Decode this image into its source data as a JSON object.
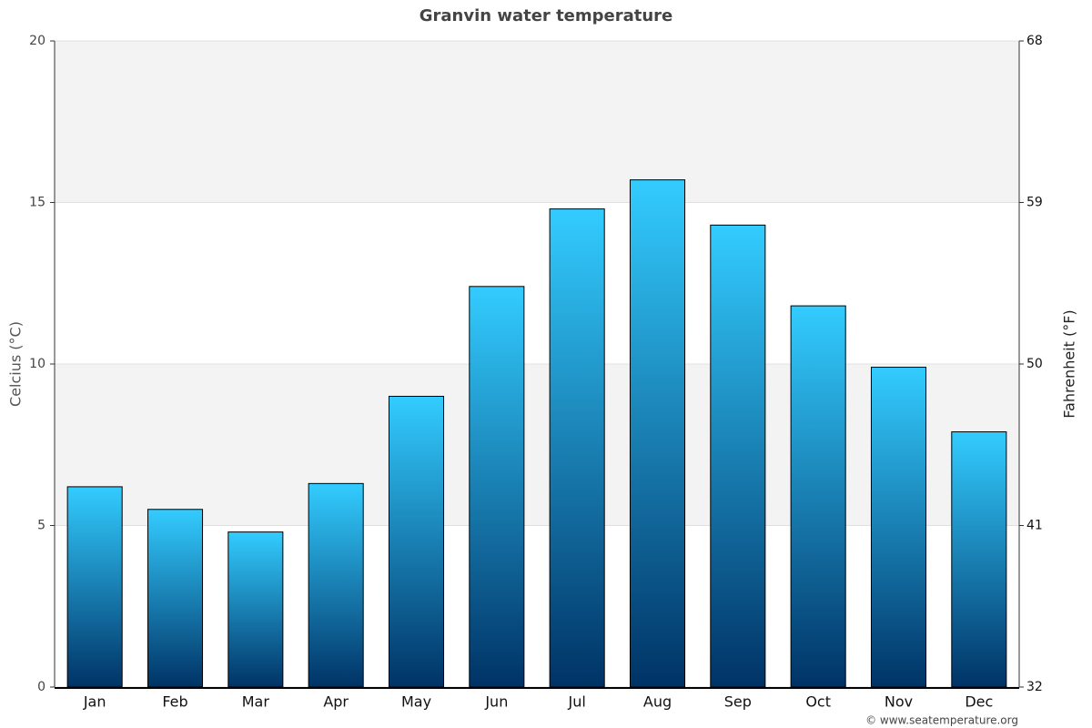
{
  "chart_data": {
    "type": "bar",
    "title": "Granvin water temperature",
    "categories": [
      "Jan",
      "Feb",
      "Mar",
      "Apr",
      "May",
      "Jun",
      "Jul",
      "Aug",
      "Sep",
      "Oct",
      "Nov",
      "Dec"
    ],
    "values": [
      6.2,
      5.5,
      4.8,
      6.3,
      9.0,
      12.4,
      14.8,
      15.7,
      14.3,
      11.8,
      9.9,
      7.9
    ],
    "gradient": [
      "#33ccff",
      "#003366"
    ],
    "band_color": "#f3f3f3",
    "ylabel": "Celcius (°C)",
    "y2label": "Fahrenheit (°F)",
    "ylim": [
      0,
      20
    ],
    "yticks": [
      0,
      5,
      10,
      15,
      20
    ],
    "y2lim": [
      32,
      68
    ],
    "y2ticks": [
      32,
      41,
      50,
      59,
      68
    ],
    "grid": true,
    "credit": "© www.seatemperature.org"
  }
}
